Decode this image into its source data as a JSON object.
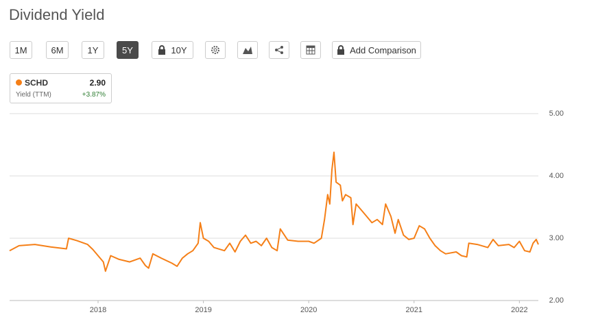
{
  "chart_data": {
    "type": "line",
    "title": "Dividend Yield",
    "x": [
      2017.16,
      2017.25,
      2017.4,
      2017.55,
      2017.7,
      2017.72,
      2017.8,
      2017.9,
      2017.95,
      2018.0,
      2018.05,
      2018.07,
      2018.12,
      2018.2,
      2018.3,
      2018.4,
      2018.45,
      2018.48,
      2018.52,
      2018.6,
      2018.7,
      2018.75,
      2018.8,
      2018.85,
      2018.9,
      2018.95,
      2018.97,
      2019.0,
      2019.05,
      2019.1,
      2019.2,
      2019.25,
      2019.3,
      2019.35,
      2019.4,
      2019.45,
      2019.5,
      2019.55,
      2019.6,
      2019.65,
      2019.7,
      2019.73,
      2019.8,
      2019.9,
      2020.0,
      2020.05,
      2020.12,
      2020.15,
      2020.18,
      2020.2,
      2020.22,
      2020.24,
      2020.26,
      2020.3,
      2020.32,
      2020.35,
      2020.4,
      2020.42,
      2020.45,
      2020.5,
      2020.55,
      2020.6,
      2020.65,
      2020.7,
      2020.73,
      2020.78,
      2020.82,
      2020.85,
      2020.9,
      2020.95,
      2021.0,
      2021.05,
      2021.1,
      2021.15,
      2021.2,
      2021.25,
      2021.3,
      2021.4,
      2021.45,
      2021.5,
      2021.52,
      2021.6,
      2021.7,
      2021.75,
      2021.8,
      2021.9,
      2021.95,
      2022.0,
      2022.05,
      2022.1,
      2022.13,
      2022.16,
      2022.18
    ],
    "series": [
      {
        "name": "SCHD",
        "color": "#f57f17",
        "values": [
          2.8,
          2.88,
          2.9,
          2.86,
          2.83,
          3.0,
          2.96,
          2.9,
          2.82,
          2.72,
          2.62,
          2.47,
          2.72,
          2.66,
          2.62,
          2.68,
          2.56,
          2.52,
          2.75,
          2.68,
          2.6,
          2.55,
          2.68,
          2.75,
          2.8,
          2.92,
          3.25,
          3.0,
          2.95,
          2.85,
          2.8,
          2.92,
          2.78,
          2.95,
          3.05,
          2.92,
          2.95,
          2.88,
          3.0,
          2.85,
          2.8,
          3.15,
          2.97,
          2.95,
          2.95,
          2.92,
          3.0,
          3.3,
          3.7,
          3.55,
          4.1,
          4.38,
          3.9,
          3.85,
          3.6,
          3.7,
          3.65,
          3.22,
          3.55,
          3.45,
          3.35,
          3.25,
          3.3,
          3.22,
          3.55,
          3.35,
          3.08,
          3.3,
          3.05,
          2.98,
          3.0,
          3.2,
          3.15,
          3.0,
          2.88,
          2.8,
          2.75,
          2.78,
          2.72,
          2.7,
          2.92,
          2.9,
          2.85,
          2.98,
          2.88,
          2.9,
          2.85,
          2.95,
          2.8,
          2.78,
          2.92,
          2.98,
          2.9
        ]
      }
    ],
    "xlim": [
      2017.16,
      2022.18
    ],
    "xticks": [
      2018,
      2019,
      2020,
      2021,
      2022
    ],
    "ylim": [
      2,
      5
    ],
    "yticks": [
      {
        "value": 2,
        "label": "2.00"
      },
      {
        "value": 3,
        "label": "3.00"
      },
      {
        "value": 4,
        "label": "4.00"
      },
      {
        "value": 5,
        "label": "5.00"
      }
    ],
    "grid": true
  },
  "toolbar": {
    "ranges": [
      "1M",
      "6M",
      "1Y",
      "5Y",
      "10Y"
    ],
    "active_range": "5Y",
    "add_comparison": "Add Comparison"
  },
  "legend_card": {
    "value": "2.90",
    "metric": "Yield (TTM)",
    "change": "+3.87%"
  }
}
